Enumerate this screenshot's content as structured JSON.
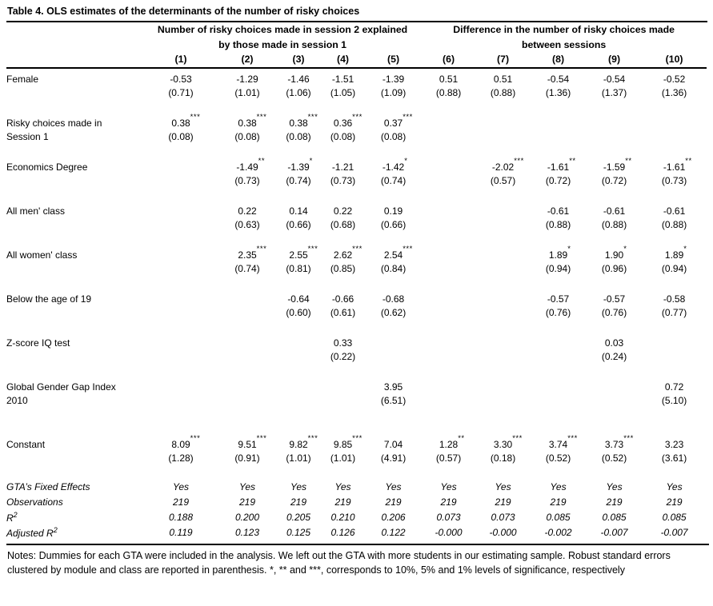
{
  "title": "Table 4. OLS estimates of the determinants of the number of risky choices",
  "table": {
    "group_headers": [
      {
        "line1": "Number of risky choices made in session 2 explained",
        "line2": "by those made in session 1"
      },
      {
        "line1": "Difference in the number of risky choices made",
        "line2": "between sessions"
      }
    ],
    "columns": [
      "(1)",
      "(2)",
      "(3)",
      "(4)",
      "(5)",
      "(6)",
      "(7)",
      "(8)",
      "(9)",
      "(10)"
    ],
    "rows": [
      {
        "label": [
          "Female"
        ],
        "coef": [
          "-0.53",
          "-1.29",
          "-1.46",
          "-1.51",
          "-1.39",
          "0.51",
          "0.51",
          "-0.54",
          "-0.54",
          "-0.52"
        ],
        "stars": [
          "",
          "",
          "",
          "",
          "",
          "",
          "",
          "",
          "",
          ""
        ],
        "se": [
          "(0.71)",
          "(1.01)",
          "(1.06)",
          "(1.05)",
          "(1.09)",
          "(0.88)",
          "(0.88)",
          "(1.36)",
          "(1.37)",
          "(1.36)"
        ]
      },
      {
        "label": [
          "Risky choices made in",
          "Session 1"
        ],
        "coef": [
          "0.38",
          "0.38",
          "0.38",
          "0.36",
          "0.37",
          "",
          "",
          "",
          "",
          ""
        ],
        "stars": [
          "***",
          "***",
          "***",
          "***",
          "***",
          "",
          "",
          "",
          "",
          ""
        ],
        "se": [
          "(0.08)",
          "(0.08)",
          "(0.08)",
          "(0.08)",
          "(0.08)",
          "",
          "",
          "",
          "",
          ""
        ]
      },
      {
        "label": [
          "Economics Degree"
        ],
        "coef": [
          "",
          "-1.49",
          "-1.39",
          "-1.21",
          "-1.42",
          "",
          "-2.02",
          "-1.61",
          "-1.59",
          "-1.61"
        ],
        "stars": [
          "",
          "**",
          "*",
          "",
          "*",
          "",
          "***",
          "**",
          "**",
          "**"
        ],
        "se": [
          "",
          "(0.73)",
          "(0.74)",
          "(0.73)",
          "(0.74)",
          "",
          "(0.57)",
          "(0.72)",
          "(0.72)",
          "(0.73)"
        ]
      },
      {
        "label": [
          "All men' class"
        ],
        "coef": [
          "",
          "0.22",
          "0.14",
          "0.22",
          "0.19",
          "",
          "",
          "-0.61",
          "-0.61",
          "-0.61"
        ],
        "stars": [
          "",
          "",
          "",
          "",
          "",
          "",
          "",
          "",
          "",
          ""
        ],
        "se": [
          "",
          "(0.63)",
          "(0.66)",
          "(0.68)",
          "(0.66)",
          "",
          "",
          "(0.88)",
          "(0.88)",
          "(0.88)"
        ]
      },
      {
        "label": [
          "All women' class"
        ],
        "coef": [
          "",
          "2.35",
          "2.55",
          "2.62",
          "2.54",
          "",
          "",
          "1.89",
          "1.90",
          "1.89"
        ],
        "stars": [
          "",
          "***",
          "***",
          "***",
          "***",
          "",
          "",
          "*",
          "*",
          "*"
        ],
        "se": [
          "",
          "(0.74)",
          "(0.81)",
          "(0.85)",
          "(0.84)",
          "",
          "",
          "(0.94)",
          "(0.96)",
          "(0.94)"
        ]
      },
      {
        "label": [
          "Below the age of 19"
        ],
        "coef": [
          "",
          "",
          "-0.64",
          "-0.66",
          "-0.68",
          "",
          "",
          "-0.57",
          "-0.57",
          "-0.58"
        ],
        "stars": [
          "",
          "",
          "",
          "",
          "",
          "",
          "",
          "",
          "",
          ""
        ],
        "se": [
          "",
          "",
          "(0.60)",
          "(0.61)",
          "(0.62)",
          "",
          "",
          "(0.76)",
          "(0.76)",
          "(0.77)"
        ]
      },
      {
        "label": [
          "Z-score IQ test"
        ],
        "coef": [
          "",
          "",
          "",
          "0.33",
          "",
          "",
          "",
          "",
          "0.03",
          ""
        ],
        "stars": [
          "",
          "",
          "",
          "",
          "",
          "",
          "",
          "",
          "",
          ""
        ],
        "se": [
          "",
          "",
          "",
          "(0.22)",
          "",
          "",
          "",
          "",
          "(0.24)",
          ""
        ]
      },
      {
        "label": [
          "Global Gender Gap Index",
          "2010"
        ],
        "coef": [
          "",
          "",
          "",
          "",
          "3.95",
          "",
          "",
          "",
          "",
          "0.72"
        ],
        "stars": [
          "",
          "",
          "",
          "",
          "",
          "",
          "",
          "",
          "",
          ""
        ],
        "se": [
          "",
          "",
          "",
          "",
          "(6.51)",
          "",
          "",
          "",
          "",
          "(5.10)"
        ]
      },
      {
        "label": [
          "Constant"
        ],
        "extra_space_before": true,
        "coef": [
          "8.09",
          "9.51",
          "9.82",
          "9.85",
          "7.04",
          "1.28",
          "3.30",
          "3.74",
          "3.73",
          "3.23"
        ],
        "stars": [
          "***",
          "***",
          "***",
          "***",
          "",
          "**",
          "***",
          "***",
          "***",
          ""
        ],
        "se": [
          "(1.28)",
          "(0.91)",
          "(1.01)",
          "(1.01)",
          "(4.91)",
          "(0.57)",
          "(0.18)",
          "(0.52)",
          "(0.52)",
          "(3.61)"
        ]
      }
    ],
    "stats": [
      {
        "label": "GTA’s Fixed Effects",
        "sup": "",
        "values": [
          "Yes",
          "Yes",
          "Yes",
          "Yes",
          "Yes",
          "Yes",
          "Yes",
          "Yes",
          "Yes",
          "Yes"
        ]
      },
      {
        "label": "Observations",
        "sup": "",
        "values": [
          "219",
          "219",
          "219",
          "219",
          "219",
          "219",
          "219",
          "219",
          "219",
          "219"
        ]
      },
      {
        "label": "R",
        "sup": "2",
        "values": [
          "0.188",
          "0.200",
          "0.205",
          "0.210",
          "0.206",
          "0.073",
          "0.073",
          "0.085",
          "0.085",
          "0.085"
        ]
      },
      {
        "label": "Adjusted R",
        "sup": "2",
        "values": [
          "0.119",
          "0.123",
          "0.125",
          "0.126",
          "0.122",
          "-0.000",
          "-0.000",
          "-0.002",
          "-0.007",
          "-0.007"
        ]
      }
    ]
  },
  "notes": "Notes: Dummies for each GTA were included in the analysis. We left out the GTA with more students in our estimating sample. Robust standard errors clustered by module and class are reported in parenthesis. *, ** and ***, corresponds to 10%, 5% and 1% levels of significance, respectively"
}
